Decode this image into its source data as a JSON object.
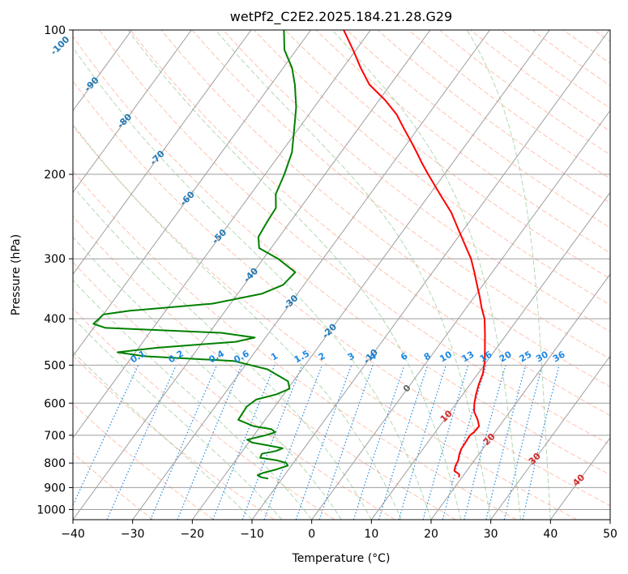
{
  "chart_data": {
    "type": "line",
    "subtype": "skew-T log-P diagram",
    "title": "wetPf2_C2E2.2025.184.21.28.G29",
    "xlabel": "Temperature (°C)",
    "ylabel": "Pressure (hPa)",
    "xlim": [
      -40,
      50
    ],
    "ylim": [
      1050,
      100
    ],
    "y_scale": "log",
    "x_ticks": [
      "−40",
      "−30",
      "−20",
      "−10",
      "0",
      "10",
      "20",
      "30",
      "40",
      "50"
    ],
    "y_ticks": [
      "100",
      "200",
      "300",
      "400",
      "500",
      "600",
      "700",
      "800",
      "900",
      "1000"
    ],
    "grid": true,
    "series": [
      {
        "key": "temperature",
        "color": "#ff0000",
        "points": [
          [
            857,
            19.5
          ],
          [
            845,
            19.2
          ],
          [
            830,
            17.9
          ],
          [
            810,
            17.5
          ],
          [
            790,
            17.3
          ],
          [
            770,
            16.8
          ],
          [
            748,
            16.4
          ],
          [
            720,
            16.3
          ],
          [
            700,
            16.2
          ],
          [
            690,
            16.5
          ],
          [
            670,
            16.6
          ],
          [
            650,
            15.6
          ],
          [
            625,
            14.0
          ],
          [
            600,
            13.0
          ],
          [
            575,
            12.2
          ],
          [
            550,
            11.5
          ],
          [
            520,
            10.8
          ],
          [
            490,
            9.6
          ],
          [
            460,
            8.0
          ],
          [
            430,
            6.3
          ],
          [
            400,
            4.4
          ],
          [
            380,
            2.6
          ],
          [
            360,
            0.9
          ],
          [
            340,
            -1.0
          ],
          [
            320,
            -3.0
          ],
          [
            300,
            -5.2
          ],
          [
            280,
            -8.0
          ],
          [
            260,
            -11.0
          ],
          [
            240,
            -14.2
          ],
          [
            220,
            -18.3
          ],
          [
            200,
            -22.7
          ],
          [
            190,
            -25.0
          ],
          [
            180,
            -27.3
          ],
          [
            170,
            -29.8
          ],
          [
            160,
            -32.5
          ],
          [
            150,
            -35.3
          ],
          [
            140,
            -39.0
          ],
          [
            130,
            -43.5
          ],
          [
            120,
            -47.0
          ],
          [
            110,
            -50.5
          ],
          [
            100,
            -54.5
          ]
        ]
      },
      {
        "key": "dewpoint",
        "color": "#008000",
        "points": [
          [
            862,
            -12.3
          ],
          [
            857,
            -13.6
          ],
          [
            848,
            -14.5
          ],
          [
            838,
            -13.8
          ],
          [
            825,
            -12.1
          ],
          [
            810,
            -10.6
          ],
          [
            800,
            -11.2
          ],
          [
            790,
            -13.0
          ],
          [
            780,
            -16.2
          ],
          [
            765,
            -16.4
          ],
          [
            755,
            -14.4
          ],
          [
            745,
            -13.6
          ],
          [
            735,
            -16.4
          ],
          [
            725,
            -19.4
          ],
          [
            715,
            -20.6
          ],
          [
            700,
            -18.0
          ],
          [
            690,
            -16.8
          ],
          [
            680,
            -17.8
          ],
          [
            670,
            -21.2
          ],
          [
            650,
            -24.5
          ],
          [
            630,
            -24.6
          ],
          [
            610,
            -24.7
          ],
          [
            590,
            -24.0
          ],
          [
            575,
            -21.2
          ],
          [
            560,
            -19.7
          ],
          [
            540,
            -20.9
          ],
          [
            510,
            -25.8
          ],
          [
            490,
            -32.5
          ],
          [
            479,
            -48.0
          ],
          [
            470,
            -53.0
          ],
          [
            460,
            -47.0
          ],
          [
            447,
            -34.5
          ],
          [
            438,
            -31.8
          ],
          [
            428,
            -38.0
          ],
          [
            418,
            -58.0
          ],
          [
            410,
            -60.5
          ],
          [
            400,
            -60.2
          ],
          [
            392,
            -60.0
          ],
          [
            385,
            -56.0
          ],
          [
            372,
            -43.0
          ],
          [
            355,
            -36.0
          ],
          [
            340,
            -33.5
          ],
          [
            320,
            -33.0
          ],
          [
            300,
            -37.5
          ],
          [
            285,
            -42.0
          ],
          [
            270,
            -43.5
          ],
          [
            250,
            -43.9
          ],
          [
            235,
            -44.1
          ],
          [
            220,
            -45.8
          ],
          [
            200,
            -46.8
          ],
          [
            180,
            -48.2
          ],
          [
            160,
            -50.8
          ],
          [
            145,
            -53.0
          ],
          [
            130,
            -56.0
          ],
          [
            120,
            -58.5
          ],
          [
            110,
            -62.0
          ],
          [
            100,
            -64.5
          ]
        ]
      }
    ],
    "isotherm_labels": [
      "-100",
      "-90",
      "-80",
      "-70",
      "-60",
      "-50",
      "-40",
      "-30",
      "-20",
      "-10",
      "0",
      "10",
      "20",
      "30",
      "40"
    ],
    "mixing_ratio_labels": [
      "0.1",
      "0.2",
      "0.4",
      "0.6",
      "1",
      "1.5",
      "2",
      "3",
      "4",
      "6",
      "8",
      "10",
      "13",
      "16",
      "20",
      "25",
      "30",
      "36"
    ],
    "colors": {
      "isotherm_cold": "#1f77b4",
      "isotherm_zero": "#666666",
      "isotherm_warm": "#d62728",
      "mixing_ratio": "#1e88e5",
      "dry_adiabat": "#ff9a7a",
      "moist_adiabat": "#7fbf7f",
      "skew_grid": "#9e9e9e",
      "wet_bulb_dashed": "#d2b48c"
    }
  }
}
